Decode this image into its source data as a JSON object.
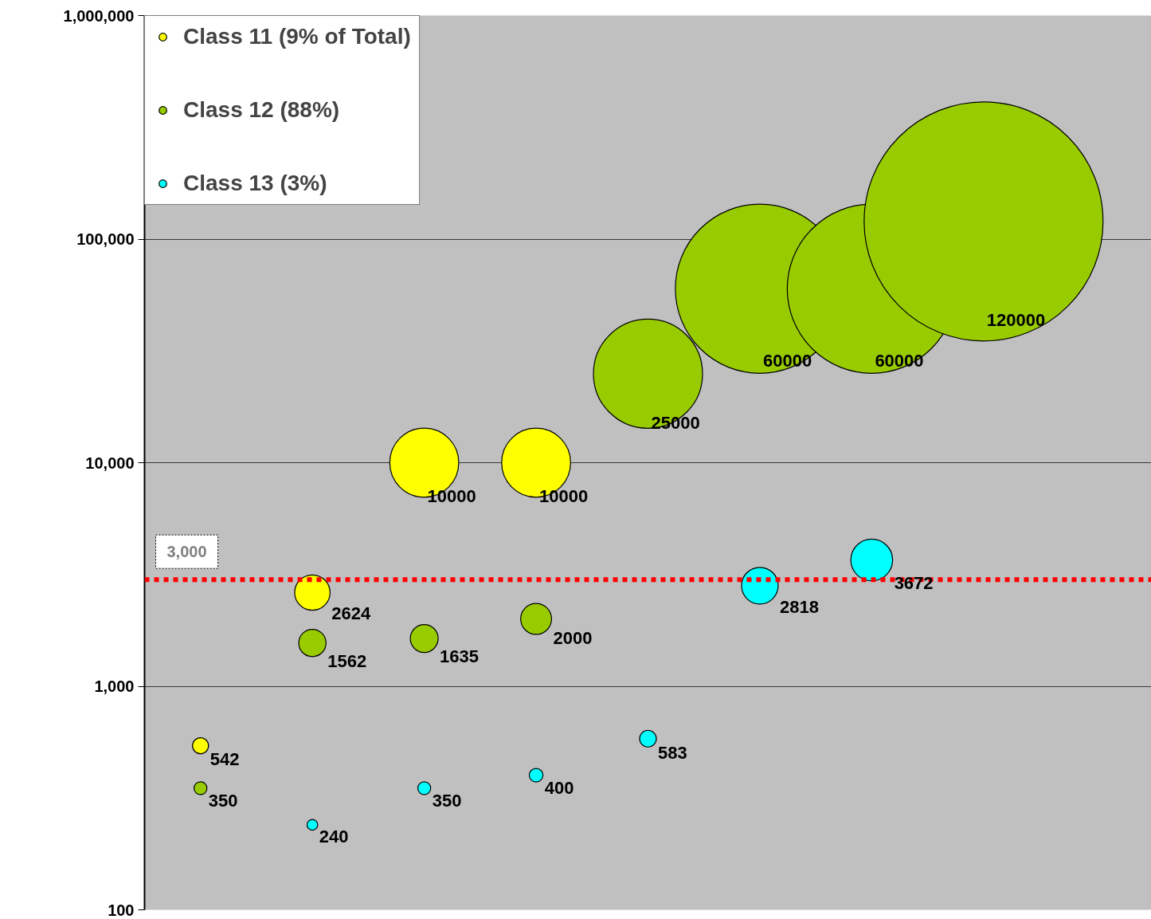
{
  "chart_data": {
    "type": "bubble",
    "categories": [
      null,
      null,
      null,
      null,
      null,
      null,
      null,
      null,
      null
    ],
    "series": [
      {
        "name": "Class 11 (9% of Total)",
        "color": "#ffff00",
        "values": [
          542,
          2624,
          10000,
          10000,
          null,
          null,
          null,
          null,
          null
        ],
        "sizes": [
          0.0045,
          0.0219,
          0.0833,
          0.0833,
          null,
          null,
          null,
          null,
          null
        ]
      },
      {
        "name": "Class 12 (88%)",
        "color": "#99cc00",
        "values": [
          350,
          1562,
          1635,
          2000,
          25000,
          60000,
          60000,
          120000,
          null
        ],
        "sizes": [
          0.0029,
          0.013,
          0.0136,
          0.0167,
          0.2083,
          0.5,
          0.5,
          1,
          null
        ]
      },
      {
        "name": "Class 13 (3%)",
        "color": "#00ffff",
        "values": [
          null,
          240,
          350,
          400,
          583,
          2818,
          3672,
          null,
          null
        ],
        "sizes": [
          null,
          0.002,
          0.0029,
          0.0033,
          0.0049,
          0.0235,
          0.0306,
          null,
          null
        ]
      }
    ],
    "ylim": [
      100,
      1000000
    ],
    "yticks": [
      {
        "value": 100,
        "label": "100"
      },
      {
        "value": 1000,
        "label": "1,000"
      },
      {
        "value": 10000,
        "label": "10,000"
      },
      {
        "value": 100000,
        "label": "100,000"
      },
      {
        "value": 1000000,
        "label": "1,000,000"
      }
    ],
    "log": "y",
    "grid": "y",
    "legend": "top left",
    "tick_labels": "y",
    "data_labels": true,
    "ref_lines": [
      {
        "axis": "y",
        "value": 3000,
        "label": "3,000",
        "color": "#ff0000",
        "line_style": "dotted"
      }
    ]
  }
}
